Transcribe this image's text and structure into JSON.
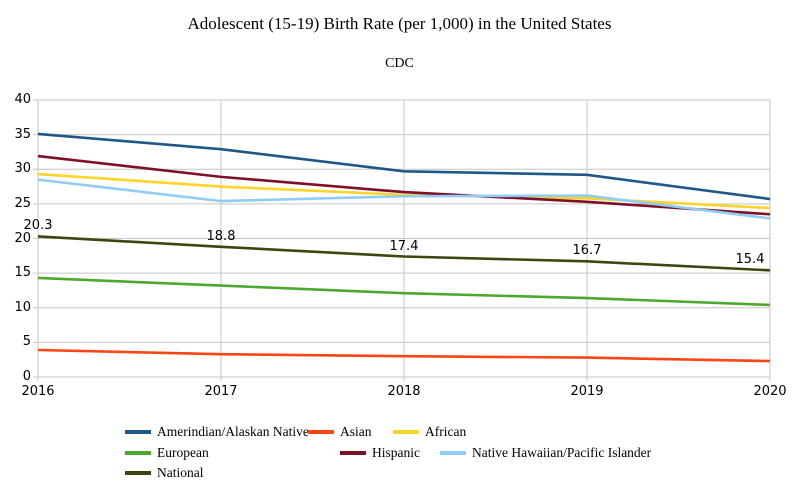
{
  "chart_data": {
    "type": "line",
    "title": "Adolescent (15-19) Birth Rate (per 1,000) in the United States",
    "subtitle": "CDC",
    "x": [
      2016,
      2017,
      2018,
      2019,
      2020
    ],
    "xlabel": "",
    "ylabel": "",
    "ylim": [
      0,
      40
    ],
    "yticks": [
      0,
      5,
      10,
      15,
      20,
      25,
      30,
      35,
      40
    ],
    "grid": true,
    "grid_color": "#c6c6c6",
    "legend_position": "bottom",
    "series": [
      {
        "name": "Amerindian/Alaskan Native",
        "slug": "amerindian-alaskan-native",
        "color": "#1F5789",
        "values": [
          35.1,
          32.9,
          29.7,
          29.2,
          25.7
        ]
      },
      {
        "name": "Asian",
        "slug": "asian",
        "color": "#FF4514",
        "values": [
          3.9,
          3.3,
          3.0,
          2.8,
          2.3
        ]
      },
      {
        "name": "African",
        "slug": "african",
        "color": "#FFD429",
        "values": [
          29.3,
          27.5,
          26.3,
          25.8,
          24.4
        ]
      },
      {
        "name": "European",
        "slug": "european",
        "color": "#4EA72E",
        "values": [
          14.3,
          13.2,
          12.1,
          11.4,
          10.4
        ]
      },
      {
        "name": "Hispanic",
        "slug": "hispanic",
        "color": "#7E1128",
        "values": [
          31.9,
          28.9,
          26.7,
          25.3,
          23.5
        ]
      },
      {
        "name": "Native Hawaiian/Pacific Islander",
        "slug": "native-hawaiian-pacific-islander",
        "color": "#8FCDF4",
        "values": [
          28.5,
          25.4,
          26.1,
          26.2,
          22.9
        ]
      },
      {
        "name": "National",
        "slug": "national",
        "color": "#3A470E",
        "values": [
          20.3,
          18.8,
          17.4,
          16.7,
          15.4
        ],
        "data_labels": [
          "20.3",
          "18.8",
          "17.4",
          "16.7",
          "15.4"
        ]
      }
    ]
  }
}
